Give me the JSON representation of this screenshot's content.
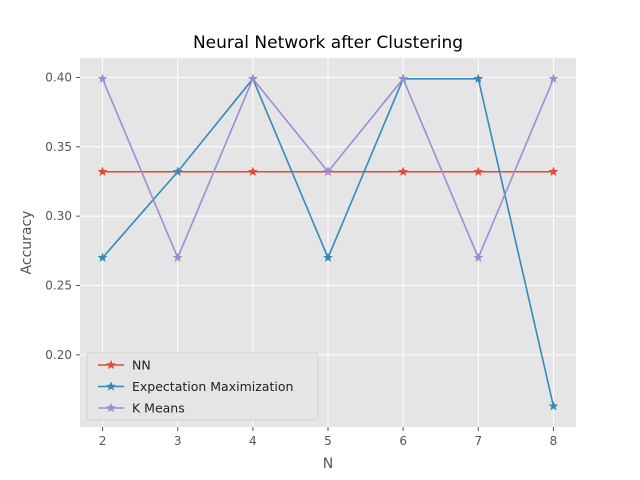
{
  "chart_data": {
    "type": "line",
    "title": "Neural Network after Clustering",
    "xlabel": "N",
    "ylabel": "Accuracy",
    "x": [
      2,
      3,
      4,
      5,
      6,
      7,
      8
    ],
    "xlim": [
      1.7,
      8.3
    ],
    "ylim": [
      0.148,
      0.414
    ],
    "x_ticks": [
      "2",
      "3",
      "4",
      "5",
      "6",
      "7",
      "8"
    ],
    "y_ticks": [
      {
        "value": 0.2,
        "label": "0.20"
      },
      {
        "value": 0.25,
        "label": "0.25"
      },
      {
        "value": 0.3,
        "label": "0.30"
      },
      {
        "value": 0.35,
        "label": "0.35"
      },
      {
        "value": 0.4,
        "label": "0.40"
      }
    ],
    "grid": true,
    "legend_position": "lower-left",
    "marker": "star",
    "series": [
      {
        "name": "NN",
        "color": "#E24A33",
        "values": [
          0.332,
          0.332,
          0.332,
          0.332,
          0.332,
          0.332,
          0.332
        ]
      },
      {
        "name": "Expectation Maximization",
        "color": "#348ABD",
        "values": [
          0.27,
          0.332,
          0.399,
          0.27,
          0.399,
          0.399,
          0.163
        ]
      },
      {
        "name": "K Means",
        "color": "#988ED5",
        "values": [
          0.399,
          0.27,
          0.399,
          0.332,
          0.399,
          0.27,
          0.399
        ]
      }
    ]
  }
}
